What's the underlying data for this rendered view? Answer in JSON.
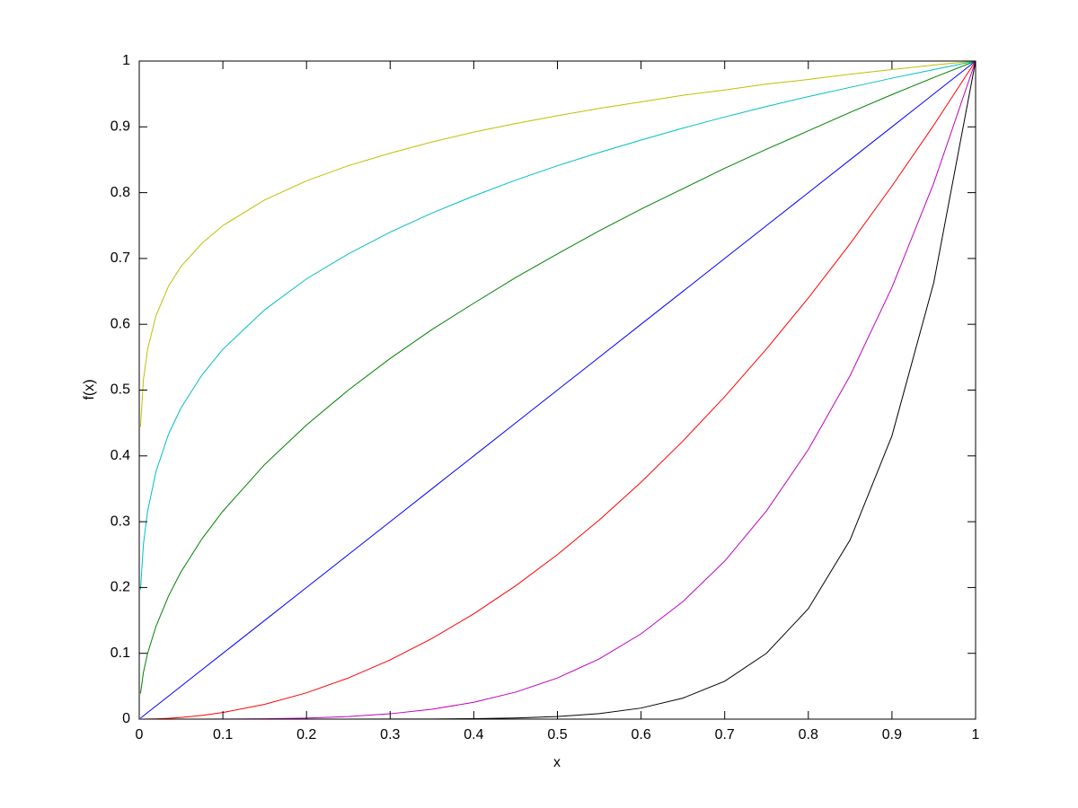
{
  "chart_data": {
    "type": "line",
    "xlabel": "x",
    "ylabel": "f(x)",
    "x": [
      0.0015,
      0.005,
      0.01,
      0.02,
      0.035,
      0.05,
      0.075,
      0.1,
      0.15,
      0.2,
      0.25,
      0.3,
      0.35,
      0.4,
      0.45,
      0.5,
      0.55,
      0.6,
      0.65,
      0.7,
      0.75,
      0.8,
      0.85,
      0.9,
      0.95,
      1
    ],
    "series": [
      {
        "color": "#bfbf00",
        "values": [
          0.444,
          0.516,
          0.562,
          0.613,
          0.658,
          0.688,
          0.723,
          0.75,
          0.789,
          0.818,
          0.841,
          0.86,
          0.877,
          0.892,
          0.905,
          0.917,
          0.928,
          0.938,
          0.948,
          0.956,
          0.965,
          0.972,
          0.98,
          0.987,
          0.994,
          1
        ]
      },
      {
        "color": "#00bfbf",
        "values": [
          0.197,
          0.266,
          0.316,
          0.376,
          0.433,
          0.473,
          0.523,
          0.562,
          0.622,
          0.669,
          0.707,
          0.74,
          0.769,
          0.795,
          0.819,
          0.841,
          0.861,
          0.88,
          0.898,
          0.915,
          0.931,
          0.946,
          0.96,
          0.974,
          0.987,
          1
        ]
      },
      {
        "color": "#008000",
        "values": [
          0.039,
          0.071,
          0.1,
          0.141,
          0.187,
          0.224,
          0.274,
          0.316,
          0.387,
          0.447,
          0.5,
          0.548,
          0.592,
          0.632,
          0.671,
          0.707,
          0.742,
          0.775,
          0.806,
          0.837,
          0.866,
          0.894,
          0.922,
          0.949,
          0.975,
          1
        ]
      },
      {
        "color": "#0000ff",
        "values": [
          0.0015,
          0.005,
          0.01,
          0.02,
          0.035,
          0.05,
          0.075,
          0.1,
          0.15,
          0.2,
          0.25,
          0.3,
          0.35,
          0.4,
          0.45,
          0.5,
          0.55,
          0.6,
          0.65,
          0.7,
          0.75,
          0.8,
          0.85,
          0.9,
          0.95,
          1
        ]
      },
      {
        "color": "#ff0000",
        "values": [
          0,
          0,
          0.0001,
          0.0004,
          0.0012,
          0.0025,
          0.0056,
          0.01,
          0.0225,
          0.04,
          0.0625,
          0.09,
          0.1225,
          0.16,
          0.2025,
          0.25,
          0.3025,
          0.36,
          0.4225,
          0.49,
          0.5625,
          0.64,
          0.7225,
          0.81,
          0.9025,
          1
        ]
      },
      {
        "color": "#bf00bf",
        "values": [
          0,
          0,
          0,
          0,
          0,
          0,
          0,
          0.0001,
          0.0005,
          0.0016,
          0.0039,
          0.0081,
          0.015,
          0.0256,
          0.041,
          0.0625,
          0.0915,
          0.1296,
          0.1785,
          0.2401,
          0.3164,
          0.4096,
          0.522,
          0.6561,
          0.8145,
          1
        ]
      },
      {
        "color": "#000000",
        "values": [
          0,
          0,
          0,
          0,
          0,
          0,
          0,
          0,
          0,
          0,
          0,
          0.0001,
          0.0002,
          0.0007,
          0.0017,
          0.0039,
          0.0084,
          0.0168,
          0.0319,
          0.0576,
          0.1001,
          0.1678,
          0.2725,
          0.4305,
          0.6634,
          1
        ]
      }
    ],
    "xlim": [
      0,
      1
    ],
    "xticks": [
      0,
      0.1,
      0.2,
      0.3,
      0.4,
      0.5,
      0.6,
      0.7,
      0.8,
      0.9,
      1
    ],
    "ylim": [
      0,
      1
    ],
    "yticks": [
      0,
      0.1,
      0.2,
      0.3,
      0.4,
      0.5,
      0.6,
      0.7,
      0.8,
      0.9,
      1
    ],
    "grid": false
  }
}
